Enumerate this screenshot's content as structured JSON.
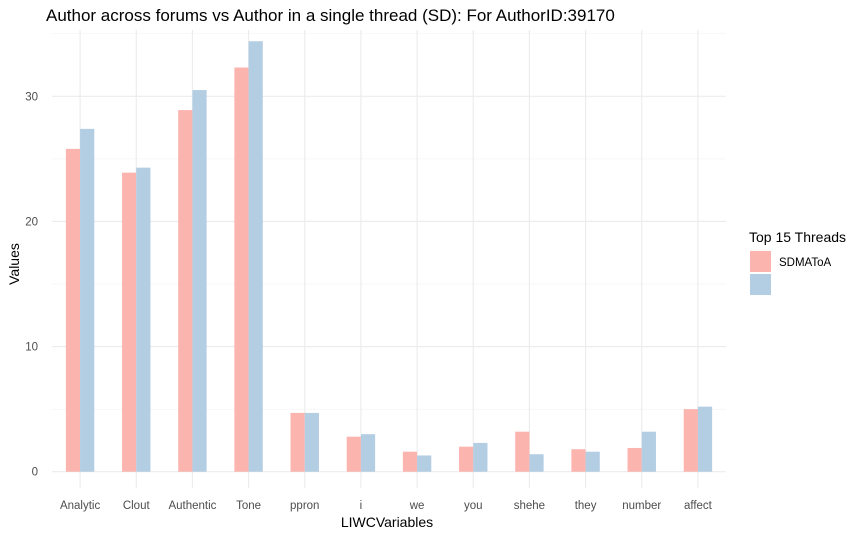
{
  "chart_data": {
    "type": "bar",
    "title": "Author across forums vs Author in a single thread (SD): For AuthorID:39170",
    "xlabel": "LIWCVariables",
    "ylabel": "Values",
    "categories": [
      "Analytic",
      "Clout",
      "Authentic",
      "Tone",
      "ppron",
      "i",
      "we",
      "you",
      "shehe",
      "they",
      "number",
      "affect"
    ],
    "ylim": [
      -1.3,
      35.3
    ],
    "yticks": [
      0,
      10,
      20,
      30
    ],
    "grid": true,
    "legend": {
      "title": "Top 15 Threads",
      "position": "right"
    },
    "series": [
      {
        "name": "SDMAToA",
        "color": "#fbb4ae",
        "values": [
          25.8,
          23.9,
          28.9,
          32.3,
          4.7,
          2.8,
          1.6,
          2.0,
          3.2,
          1.8,
          1.9,
          5.0
        ]
      },
      {
        "color": "#b3cde3",
        "values": [
          27.4,
          24.3,
          30.5,
          34.4,
          4.7,
          3.0,
          1.3,
          2.3,
          1.4,
          1.6,
          3.2,
          5.2
        ]
      }
    ]
  }
}
